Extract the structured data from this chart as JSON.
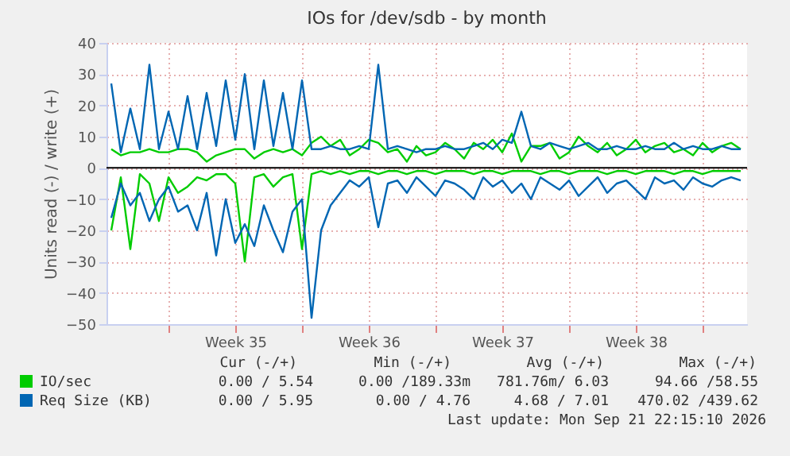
{
  "chart_data": {
    "type": "line",
    "title": "IOs for /dev/sdb - by month",
    "ylabel": "Units read (-) / write (+)",
    "x": [
      "2026-08-21T00:00",
      "2026-08-21T12:00",
      "2026-08-22T00:00",
      "2026-08-22T12:00",
      "2026-08-23T00:00",
      "2026-08-23T12:00",
      "2026-08-24T00:00",
      "2026-08-24T12:00",
      "2026-08-25T00:00",
      "2026-08-25T12:00",
      "2026-08-26T00:00",
      "2026-08-26T12:00",
      "2026-08-27T00:00",
      "2026-08-27T12:00",
      "2026-08-28T00:00",
      "2026-08-28T12:00",
      "2026-08-29T00:00",
      "2026-08-29T12:00",
      "2026-08-30T00:00",
      "2026-08-30T12:00",
      "2026-08-31T00:00",
      "2026-08-31T12:00",
      "2026-09-01T00:00",
      "2026-09-01T12:00",
      "2026-09-02T00:00",
      "2026-09-02T12:00",
      "2026-09-03T00:00",
      "2026-09-03T12:00",
      "2026-09-04T00:00",
      "2026-09-04T12:00",
      "2026-09-05T00:00",
      "2026-09-05T12:00",
      "2026-09-06T00:00",
      "2026-09-06T12:00",
      "2026-09-07T00:00",
      "2026-09-07T12:00",
      "2026-09-08T00:00",
      "2026-09-08T12:00",
      "2026-09-09T00:00",
      "2026-09-09T12:00",
      "2026-09-10T00:00",
      "2026-09-10T12:00",
      "2026-09-11T00:00",
      "2026-09-11T12:00",
      "2026-09-12T00:00",
      "2026-09-12T12:00",
      "2026-09-13T00:00",
      "2026-09-13T12:00",
      "2026-09-14T00:00",
      "2026-09-14T12:00",
      "2026-09-15T00:00",
      "2026-09-15T12:00",
      "2026-09-16T00:00",
      "2026-09-16T12:00",
      "2026-09-17T00:00",
      "2026-09-17T12:00",
      "2026-09-18T00:00",
      "2026-09-18T12:00",
      "2026-09-19T00:00",
      "2026-09-19T12:00",
      "2026-09-20T00:00",
      "2026-09-20T12:00",
      "2026-09-21T00:00",
      "2026-09-21T12:00",
      "2026-09-22T00:00",
      "2026-09-22T12:00",
      "2026-09-23T00:00"
    ],
    "series": [
      {
        "color": "#00cc00",
        "values": [
          -20,
          -3,
          -26,
          -2,
          -5,
          -17,
          -3,
          -8,
          -6,
          -3,
          -4,
          -2,
          -2,
          -5,
          -30,
          -3,
          -2,
          -6,
          -3,
          -2,
          -26,
          -2,
          -1,
          -2,
          -1,
          -2,
          -1,
          -1,
          -2,
          -1,
          -1,
          -2,
          -1,
          -1,
          -2,
          -1,
          -1,
          -1,
          -2,
          -1,
          -1,
          -2,
          -1,
          -1,
          -1,
          -2,
          -1,
          -1,
          -2,
          -1,
          -1,
          -1,
          -2,
          -1,
          -1,
          -2,
          -1,
          -1,
          -1,
          -2,
          -1,
          -1,
          -2,
          -1,
          -1,
          -1,
          -1
        ]
      },
      {
        "name": "IO/sec",
        "color": "#00cc00",
        "values": [
          6,
          4,
          5,
          5,
          6,
          5,
          5,
          6,
          6,
          5,
          2,
          4,
          5,
          6,
          6,
          3,
          5,
          6,
          5,
          6,
          4,
          8,
          10,
          7,
          9,
          4,
          6,
          9,
          8,
          5,
          6,
          2,
          7,
          4,
          5,
          8,
          6,
          3,
          8,
          6,
          9,
          5,
          11,
          2,
          7,
          7,
          8,
          3,
          5,
          10,
          7,
          5,
          8,
          4,
          6,
          9,
          5,
          7,
          8,
          5,
          6,
          4,
          8,
          5,
          7,
          8,
          6
        ]
      },
      {
        "color": "#0066b3",
        "values": [
          -16,
          -5,
          -12,
          -8,
          -17,
          -10,
          -6,
          -14,
          -12,
          -20,
          -8,
          -28,
          -10,
          -24,
          -18,
          -25,
          -12,
          -20,
          -27,
          -14,
          -10,
          -48,
          -20,
          -12,
          -8,
          -4,
          -6,
          -3,
          -19,
          -5,
          -4,
          -8,
          -3,
          -6,
          -9,
          -4,
          -5,
          -7,
          -10,
          -3,
          -6,
          -4,
          -8,
          -5,
          -10,
          -3,
          -5,
          -7,
          -4,
          -9,
          -6,
          -3,
          -8,
          -5,
          -4,
          -7,
          -10,
          -3,
          -5,
          -4,
          -7,
          -3,
          -5,
          -6,
          -4,
          -3,
          -4
        ]
      },
      {
        "name": "Req Size (KB)",
        "color": "#0066b3",
        "values": [
          27,
          5,
          19,
          6,
          33,
          6,
          18,
          6,
          23,
          6,
          24,
          7,
          28,
          9,
          30,
          6,
          28,
          7,
          24,
          6,
          28,
          6,
          6,
          7,
          6,
          6,
          7,
          6,
          33,
          6,
          7,
          6,
          5,
          6,
          6,
          7,
          6,
          6,
          7,
          8,
          6,
          9,
          8,
          18,
          7,
          6,
          8,
          7,
          6,
          7,
          8,
          6,
          6,
          7,
          6,
          6,
          7,
          6,
          6,
          8,
          6,
          7,
          6,
          6,
          7,
          6,
          6
        ]
      }
    ],
    "xlim": [
      "2026-08-20T18:00",
      "2026-09-23T08:00"
    ],
    "xticks": [
      {
        "value": "2026-08-24T00:00",
        "label": null
      },
      {
        "value": "2026-08-27T12:00",
        "label": "Week 35"
      },
      {
        "value": "2026-08-31T00:00",
        "label": null
      },
      {
        "value": "2026-09-03T12:00",
        "label": "Week 36"
      },
      {
        "value": "2026-09-07T00:00",
        "label": null
      },
      {
        "value": "2026-09-10T12:00",
        "label": "Week 37"
      },
      {
        "value": "2026-09-14T00:00",
        "label": null
      },
      {
        "value": "2026-09-17T12:00",
        "label": "Week 38"
      },
      {
        "value": "2026-09-21T00:00",
        "label": null
      }
    ],
    "ylim": [
      -50,
      40
    ],
    "yticks": [
      -50,
      -40,
      -30,
      -20,
      -10,
      0,
      10,
      20,
      30,
      40
    ],
    "ref_lines": [
      {
        "axis": "y",
        "value": 0,
        "color": "#000000"
      }
    ],
    "grid": true,
    "legend": "bottom left",
    "annotations": [
      "Cur (-/+)",
      "Min (-/+)",
      "Avg (-/+)",
      "Max (-/+)",
      "0.00 / 5.54",
      "0.00 /189.33m",
      "781.76m/ 6.03",
      "94.66 /58.55",
      "0.00 / 5.95",
      "0.00 / 4.76",
      "4.68 / 7.01",
      "470.02 /439.62",
      "Last update: Mon Sep 21 22:15:10 2026"
    ]
  }
}
